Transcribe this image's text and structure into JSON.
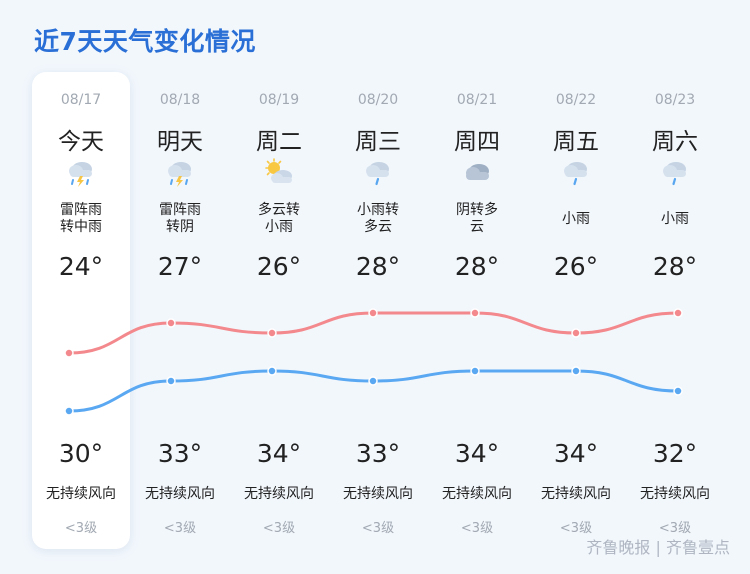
{
  "title": "近7天天气变化情况",
  "colors": {
    "accent": "#2a6fd6",
    "line_red": "#f3898d",
    "line_blue": "#5aa8f2"
  },
  "days": [
    {
      "date": "08/17",
      "day": "今天",
      "cond": "雷阵雨\n转中雨",
      "icon": "thunder-rain-icon",
      "low": "24°",
      "high": "30°",
      "wind": "无持续风向",
      "level": "<3级",
      "today": true
    },
    {
      "date": "08/18",
      "day": "明天",
      "cond": "雷阵雨\n转阴",
      "icon": "thunder-rain-icon",
      "low": "27°",
      "high": "33°",
      "wind": "无持续风向",
      "level": "<3级"
    },
    {
      "date": "08/19",
      "day": "周二",
      "cond": "多云转\n小雨",
      "icon": "partly-cloudy-sun-icon",
      "low": "26°",
      "high": "34°",
      "wind": "无持续风向",
      "level": "<3级"
    },
    {
      "date": "08/20",
      "day": "周三",
      "cond": "小雨转\n多云",
      "icon": "light-rain-icon",
      "low": "28°",
      "high": "33°",
      "wind": "无持续风向",
      "level": "<3级"
    },
    {
      "date": "08/21",
      "day": "周四",
      "cond": "阴转多\n云",
      "icon": "overcast-cloud-icon",
      "low": "28°",
      "high": "34°",
      "wind": "无持续风向",
      "level": "<3级"
    },
    {
      "date": "08/22",
      "day": "周五",
      "cond": "小雨",
      "icon": "light-rain-icon",
      "low": "26°",
      "high": "34°",
      "wind": "无持续风向",
      "level": "<3级"
    },
    {
      "date": "08/23",
      "day": "周六",
      "cond": "小雨",
      "icon": "light-rain-icon",
      "low": "28°",
      "high": "32°",
      "wind": "无持续风向",
      "level": "<3级"
    }
  ],
  "watermark": "齐鲁晚报 | 齐鲁壹点"
}
